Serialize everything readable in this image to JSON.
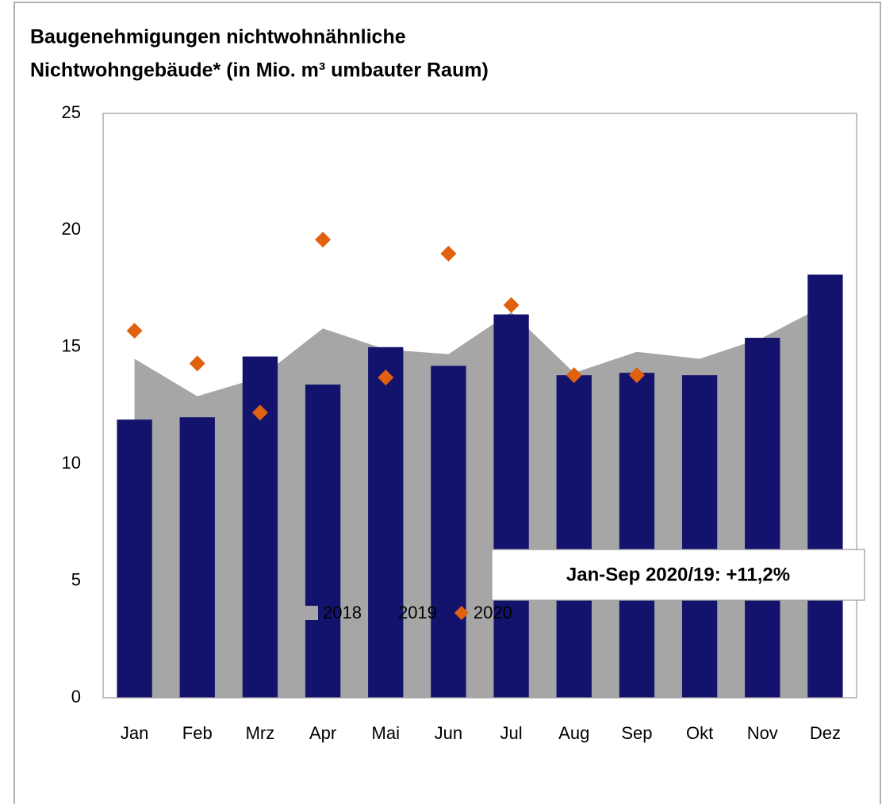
{
  "chart_data": {
    "type": "combo",
    "title": [
      "Baugenehmigungen nichtwohnähnliche",
      "Nichtwohngebäude* (in Mio. m³ umbauter Raum)"
    ],
    "categories": [
      "Jan",
      "Feb",
      "Mrz",
      "Apr",
      "Mai",
      "Jun",
      "Jul",
      "Aug",
      "Sep",
      "Okt",
      "Nov",
      "Dez"
    ],
    "series": [
      {
        "name": "2018",
        "type": "area",
        "color": "#a6a6a6",
        "values": [
          14.5,
          12.9,
          13.7,
          15.8,
          14.9,
          14.7,
          16.5,
          13.9,
          14.8,
          14.5,
          15.4,
          16.8
        ]
      },
      {
        "name": "2019",
        "type": "bar",
        "color": "#13136e",
        "values": [
          11.9,
          12.0,
          14.6,
          13.4,
          15.0,
          14.2,
          16.4,
          13.8,
          13.9,
          13.8,
          15.4,
          18.1
        ]
      },
      {
        "name": "2020",
        "type": "scatter",
        "color": "#e0610e",
        "values": [
          15.7,
          14.3,
          12.2,
          19.6,
          13.7,
          19.0,
          16.8,
          13.8,
          13.8,
          null,
          null,
          null
        ]
      }
    ],
    "ylim": [
      0,
      25
    ],
    "yticks": [
      0,
      5,
      10,
      15,
      20,
      25
    ],
    "grid": false,
    "annotation": "Jan-Sep 2020/19: +11,2%",
    "legend": "bottom"
  }
}
